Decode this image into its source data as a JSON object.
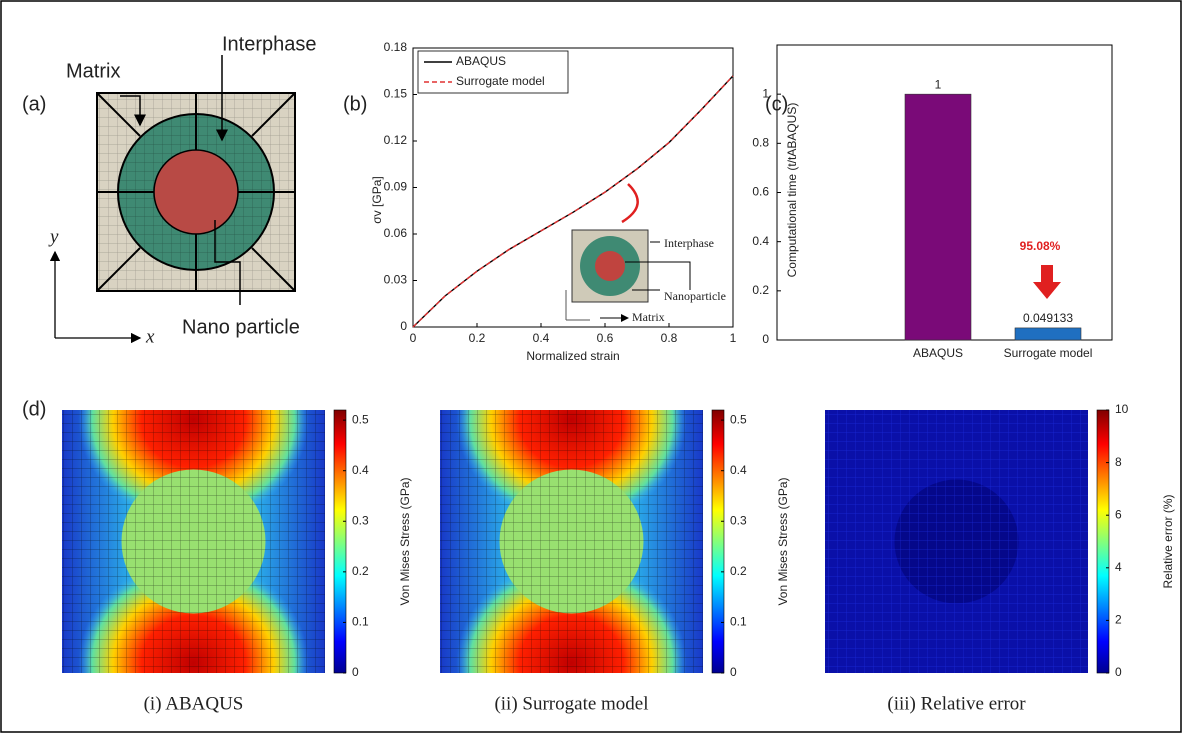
{
  "diagram": {
    "panel_label": "(a)",
    "labels": [
      "Matrix",
      "Interphase",
      "Nano particle"
    ],
    "axes": [
      "y",
      "x"
    ]
  },
  "chart_data": [
    {
      "type": "line",
      "panel_label": "(b)",
      "xlabel": "Normalized strain",
      "ylabel": "σv [GPa]",
      "x": [
        0,
        0.1,
        0.2,
        0.3,
        0.4,
        0.5,
        0.6,
        0.7,
        0.8,
        0.9,
        1
      ],
      "series": [
        {
          "name": "ABAQUS",
          "color": "#000000",
          "values": [
            0,
            0.02,
            0.036,
            0.05,
            0.062,
            0.074,
            0.087,
            0.102,
            0.119,
            0.14,
            0.162
          ]
        },
        {
          "name": "Surrogate model",
          "color": "#e03030",
          "values": [
            0,
            0.02,
            0.036,
            0.05,
            0.062,
            0.074,
            0.087,
            0.102,
            0.119,
            0.14,
            0.162
          ]
        }
      ],
      "xlim": [
        0,
        1
      ],
      "xticks": [
        0,
        0.2,
        0.4,
        0.6,
        0.8,
        1
      ],
      "ylim": [
        0,
        0.18
      ],
      "yticks": [
        0,
        0.03,
        0.06,
        0.09,
        0.12,
        0.15,
        0.18
      ],
      "inset_labels": [
        "Interphase",
        "Nanoparticle",
        "Matrix"
      ]
    },
    {
      "type": "bar",
      "panel_label": "(c)",
      "ylabel": "Computational time (t/tABAQUS)",
      "categories": [
        "ABAQUS",
        "Surrogate model"
      ],
      "values": [
        1,
        0.049133
      ],
      "colors": [
        "#7a0a78",
        "#1f6fc0"
      ],
      "ylim": [
        0,
        1.2
      ],
      "yticks": [
        0,
        0.2,
        0.4,
        0.6,
        0.8,
        1
      ],
      "annotation": "95.08%"
    },
    {
      "type": "heatmap",
      "panel_label": "(d)",
      "caption": "(i) ABAQUS",
      "colorbar_label": "Von Mises Stress (GPa)",
      "ylim": [
        0,
        0.52
      ],
      "yticks": [
        0,
        0.1,
        0.2,
        0.3,
        0.4,
        0.5
      ]
    },
    {
      "type": "heatmap",
      "caption": "(ii) Surrogate model",
      "colorbar_label": "Von Mises Stress (GPa)",
      "ylim": [
        0,
        0.52
      ],
      "yticks": [
        0,
        0.1,
        0.2,
        0.3,
        0.4,
        0.5
      ]
    },
    {
      "type": "heatmap-error",
      "caption": "(iii) Relative error",
      "colorbar_label": "Relative error (%)",
      "ylim": [
        0,
        10
      ],
      "yticks": [
        0,
        2,
        4,
        6,
        8,
        10
      ]
    }
  ]
}
